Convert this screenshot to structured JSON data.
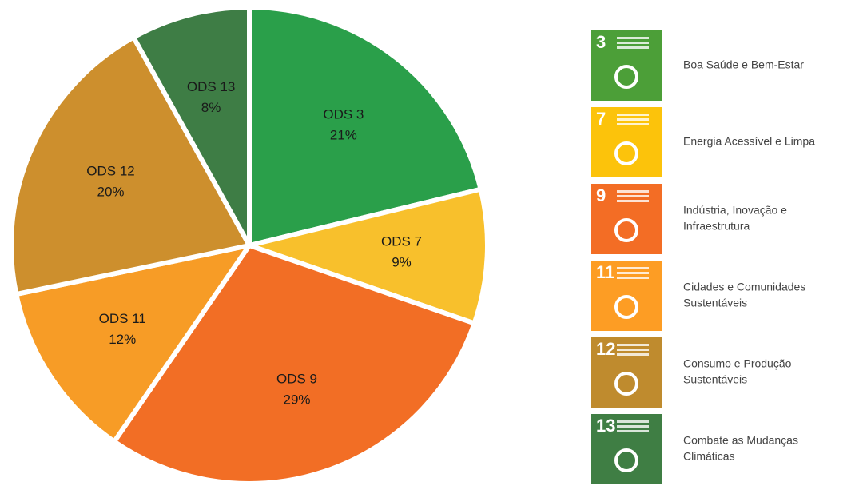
{
  "chart_data": {
    "type": "pie",
    "categories": [
      "ODS 3",
      "ODS 7",
      "ODS 9",
      "ODS 11",
      "ODS 12",
      "ODS 13"
    ],
    "values": [
      21,
      9,
      29,
      12,
      20,
      8
    ],
    "value_labels": [
      "21%",
      "9%",
      "29%",
      "12%",
      "20%",
      "8%"
    ],
    "colors": [
      "#2a9f4a",
      "#f8c02c",
      "#f26e25",
      "#f79c26",
      "#cd8f2d",
      "#3e7d45"
    ]
  },
  "legend": [
    {
      "number": "3",
      "color": "#4c9f38",
      "label": [
        "Boa Saúde e Bem-Estar"
      ]
    },
    {
      "number": "7",
      "color": "#fcc30b",
      "label": [
        "Energia Acessível e Limpa"
      ]
    },
    {
      "number": "9",
      "color": "#f36d25",
      "label": [
        "Indústria, Inovação e",
        "Infraestrutura"
      ]
    },
    {
      "number": "11",
      "color": "#fd9d24",
      "label": [
        "Cidades e Comunidades",
        "Sustentáveis"
      ]
    },
    {
      "number": "12",
      "color": "#bf8b2e",
      "label": [
        "Consumo e Produção",
        "Sustentáveis"
      ]
    },
    {
      "number": "13",
      "color": "#3f7e44",
      "label": [
        "Combate as Mudanças",
        "Climáticas"
      ]
    }
  ]
}
